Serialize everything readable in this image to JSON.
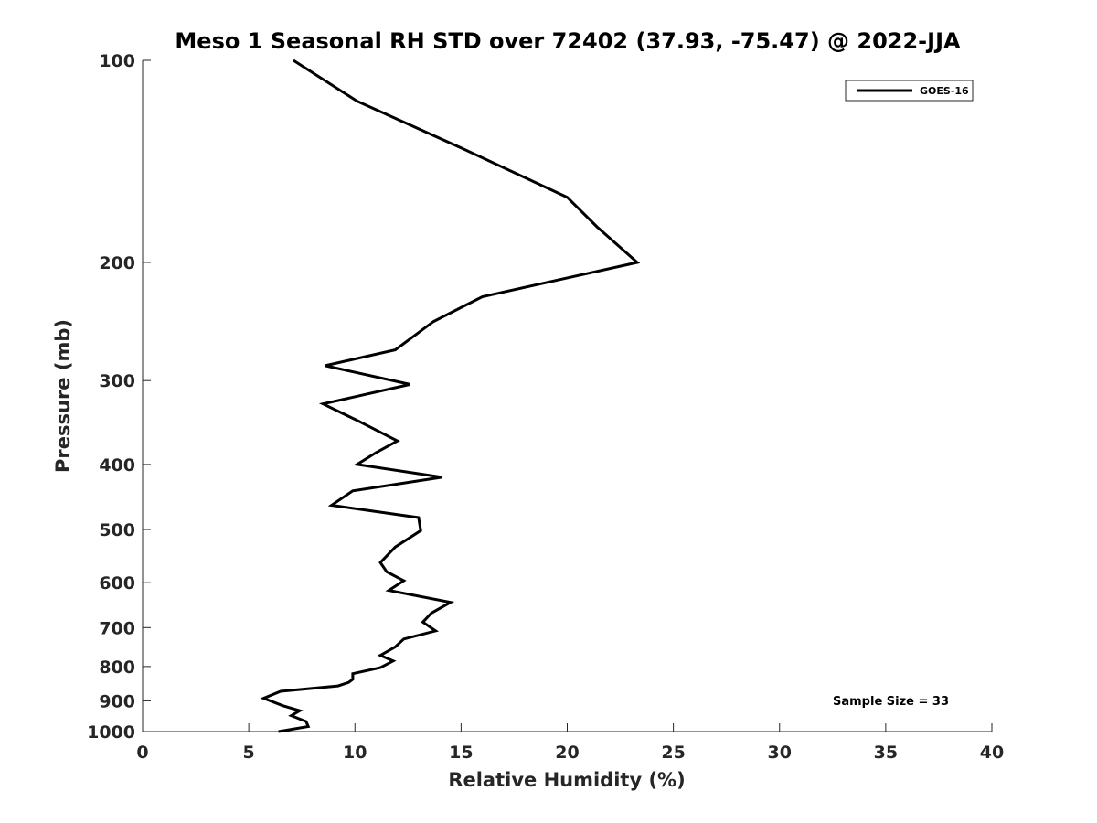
{
  "chart_data": {
    "type": "line",
    "title": "Meso 1 Seasonal RH STD over 72402 (37.93, -75.47) @ 2022-JJA",
    "xlabel": "Relative Humidity (%)",
    "ylabel": "Pressure (mb)",
    "xlim": [
      0,
      40
    ],
    "ylim": [
      1000,
      100
    ],
    "y_scale": "log",
    "x_ticks": [
      0,
      5,
      10,
      15,
      20,
      25,
      30,
      35,
      40
    ],
    "y_ticks": [
      100,
      200,
      300,
      400,
      500,
      600,
      700,
      800,
      900,
      1000
    ],
    "grid": false,
    "legend_position": "top-right",
    "annotation": "Sample Size = 33",
    "colors": {
      "line": "#000000",
      "axis": "#262626"
    },
    "series": [
      {
        "name": "GOES-16",
        "x": [
          7.1,
          10.1,
          15.0,
          20.0,
          21.4,
          23.3,
          16.0,
          13.7,
          11.9,
          8.6,
          12.6,
          8.5,
          10.2,
          12.0,
          11.0,
          10.1,
          14.1,
          9.9,
          8.9,
          13.0,
          13.1,
          11.9,
          11.2,
          11.5,
          12.3,
          11.6,
          14.5,
          13.6,
          13.2,
          13.8,
          12.3,
          11.9,
          11.2,
          11.8,
          11.2,
          9.9,
          9.9,
          9.7,
          9.2,
          6.5,
          5.7,
          6.6,
          7.4,
          7.0,
          7.7,
          7.8,
          6.4
        ],
        "y": [
          100,
          115,
          135,
          160,
          177,
          200,
          225,
          245,
          270,
          285,
          304,
          325,
          345,
          369,
          384,
          400,
          418,
          438,
          460,
          480,
          502,
          531,
          560,
          578,
          596,
          616,
          642,
          666,
          687,
          708,
          728,
          748,
          770,
          785,
          803,
          820,
          836,
          845,
          855,
          871,
          892,
          915,
          931,
          947,
          966,
          983,
          1000
        ]
      }
    ]
  }
}
